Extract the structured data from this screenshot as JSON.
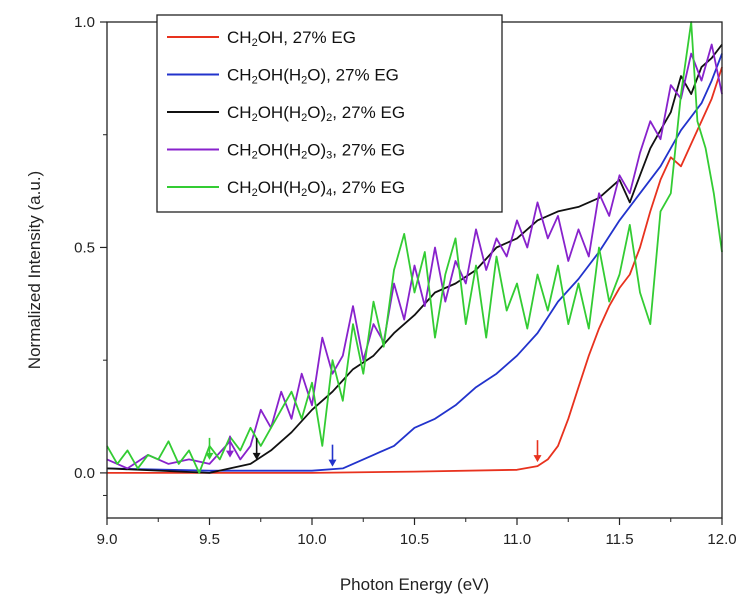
{
  "chart_data": {
    "type": "line",
    "xlabel": "Photon Energy (eV)",
    "ylabel": "Normalized Intensity (a.u.)",
    "xlim": [
      9.0,
      12.0
    ],
    "ylim": [
      -0.1,
      1.0
    ],
    "x_ticks": [
      "9.0",
      "9.5",
      "10.0",
      "10.5",
      "11.0",
      "11.5",
      "12.0"
    ],
    "y_ticks": [
      "0.0",
      "0.5",
      "1.0"
    ],
    "legend_position": "top-left",
    "grid": false,
    "series": [
      {
        "name": "CH2OH, 27% EG",
        "legend": {
          "pre": "CH",
          "sub": "2",
          "post": "OH, 27% EG"
        },
        "color": "#e8321e",
        "points": [
          [
            9.0,
            0.0
          ],
          [
            10.0,
            0.0
          ],
          [
            10.5,
            0.003
          ],
          [
            11.0,
            0.007
          ],
          [
            11.1,
            0.015
          ],
          [
            11.15,
            0.03
          ],
          [
            11.2,
            0.06
          ],
          [
            11.25,
            0.12
          ],
          [
            11.3,
            0.19
          ],
          [
            11.35,
            0.26
          ],
          [
            11.4,
            0.32
          ],
          [
            11.45,
            0.37
          ],
          [
            11.5,
            0.41
          ],
          [
            11.55,
            0.44
          ],
          [
            11.6,
            0.5
          ],
          [
            11.65,
            0.58
          ],
          [
            11.7,
            0.65
          ],
          [
            11.75,
            0.7
          ],
          [
            11.8,
            0.68
          ],
          [
            11.85,
            0.73
          ],
          [
            11.9,
            0.78
          ],
          [
            11.95,
            0.83
          ],
          [
            12.0,
            0.9
          ]
        ]
      },
      {
        "name": "CH2OH(H2O), 27% EG",
        "legend": {
          "pre": "CH",
          "sub": "2",
          "mid": "OH(H",
          "sub2": "2",
          "post": "O), 27% EG"
        },
        "color": "#2233cc",
        "points": [
          [
            9.0,
            0.01
          ],
          [
            9.5,
            0.005
          ],
          [
            10.0,
            0.005
          ],
          [
            10.15,
            0.01
          ],
          [
            10.3,
            0.04
          ],
          [
            10.4,
            0.06
          ],
          [
            10.5,
            0.1
          ],
          [
            10.6,
            0.12
          ],
          [
            10.7,
            0.15
          ],
          [
            10.8,
            0.19
          ],
          [
            10.9,
            0.22
          ],
          [
            11.0,
            0.26
          ],
          [
            11.1,
            0.31
          ],
          [
            11.2,
            0.38
          ],
          [
            11.3,
            0.43
          ],
          [
            11.4,
            0.49
          ],
          [
            11.5,
            0.56
          ],
          [
            11.6,
            0.62
          ],
          [
            11.7,
            0.68
          ],
          [
            11.8,
            0.76
          ],
          [
            11.9,
            0.82
          ],
          [
            11.95,
            0.87
          ],
          [
            12.0,
            0.93
          ]
        ]
      },
      {
        "name": "CH2OH(H2O)2, 27% EG",
        "legend": {
          "pre": "CH",
          "sub": "2",
          "mid": "OH(H",
          "sub2": "2",
          "post": "O)",
          "sub3": "2",
          "tail": ", 27% EG"
        },
        "color": "#111111",
        "points": [
          [
            9.0,
            0.01
          ],
          [
            9.5,
            0.0
          ],
          [
            9.7,
            0.02
          ],
          [
            9.8,
            0.05
          ],
          [
            9.9,
            0.09
          ],
          [
            10.0,
            0.14
          ],
          [
            10.1,
            0.18
          ],
          [
            10.2,
            0.23
          ],
          [
            10.3,
            0.26
          ],
          [
            10.4,
            0.31
          ],
          [
            10.5,
            0.35
          ],
          [
            10.6,
            0.4
          ],
          [
            10.7,
            0.42
          ],
          [
            10.8,
            0.45
          ],
          [
            10.9,
            0.5
          ],
          [
            11.0,
            0.52
          ],
          [
            11.1,
            0.56
          ],
          [
            11.2,
            0.58
          ],
          [
            11.3,
            0.59
          ],
          [
            11.4,
            0.61
          ],
          [
            11.5,
            0.65
          ],
          [
            11.55,
            0.6
          ],
          [
            11.6,
            0.66
          ],
          [
            11.65,
            0.72
          ],
          [
            11.7,
            0.76
          ],
          [
            11.75,
            0.8
          ],
          [
            11.8,
            0.88
          ],
          [
            11.85,
            0.84
          ],
          [
            11.9,
            0.9
          ],
          [
            11.95,
            0.92
          ],
          [
            12.0,
            0.95
          ]
        ]
      },
      {
        "name": "CH2OH(H2O)3, 27% EG",
        "legend": {
          "pre": "CH",
          "sub": "2",
          "mid": "OH(H",
          "sub2": "2",
          "post": "O)",
          "sub3": "3",
          "tail": ", 27% EG"
        },
        "color": "#8822cc",
        "points": [
          [
            9.0,
            0.03
          ],
          [
            9.1,
            0.01
          ],
          [
            9.2,
            0.04
          ],
          [
            9.3,
            0.02
          ],
          [
            9.4,
            0.03
          ],
          [
            9.5,
            0.02
          ],
          [
            9.6,
            0.07
          ],
          [
            9.65,
            0.03
          ],
          [
            9.7,
            0.06
          ],
          [
            9.75,
            0.14
          ],
          [
            9.8,
            0.1
          ],
          [
            9.85,
            0.18
          ],
          [
            9.9,
            0.12
          ],
          [
            9.95,
            0.22
          ],
          [
            10.0,
            0.15
          ],
          [
            10.05,
            0.3
          ],
          [
            10.1,
            0.22
          ],
          [
            10.15,
            0.26
          ],
          [
            10.2,
            0.37
          ],
          [
            10.25,
            0.25
          ],
          [
            10.3,
            0.33
          ],
          [
            10.35,
            0.29
          ],
          [
            10.4,
            0.42
          ],
          [
            10.45,
            0.34
          ],
          [
            10.5,
            0.46
          ],
          [
            10.55,
            0.37
          ],
          [
            10.6,
            0.5
          ],
          [
            10.65,
            0.38
          ],
          [
            10.7,
            0.47
          ],
          [
            10.75,
            0.42
          ],
          [
            10.8,
            0.54
          ],
          [
            10.85,
            0.45
          ],
          [
            10.9,
            0.52
          ],
          [
            10.95,
            0.48
          ],
          [
            11.0,
            0.56
          ],
          [
            11.05,
            0.5
          ],
          [
            11.1,
            0.6
          ],
          [
            11.15,
            0.52
          ],
          [
            11.2,
            0.57
          ],
          [
            11.25,
            0.47
          ],
          [
            11.3,
            0.54
          ],
          [
            11.35,
            0.48
          ],
          [
            11.4,
            0.62
          ],
          [
            11.45,
            0.57
          ],
          [
            11.5,
            0.66
          ],
          [
            11.55,
            0.62
          ],
          [
            11.6,
            0.71
          ],
          [
            11.65,
            0.78
          ],
          [
            11.7,
            0.74
          ],
          [
            11.75,
            0.86
          ],
          [
            11.8,
            0.83
          ],
          [
            11.85,
            0.93
          ],
          [
            11.9,
            0.87
          ],
          [
            11.95,
            0.95
          ],
          [
            12.0,
            0.84
          ]
        ]
      },
      {
        "name": "CH2OH(H2O)4, 27% EG",
        "legend": {
          "pre": "CH",
          "sub": "2",
          "mid": "OH(H",
          "sub2": "2",
          "post": "O)",
          "sub3": "4",
          "tail": ", 27% EG"
        },
        "color": "#33cc33",
        "points": [
          [
            9.0,
            0.06
          ],
          [
            9.05,
            0.02
          ],
          [
            9.1,
            0.05
          ],
          [
            9.15,
            0.01
          ],
          [
            9.2,
            0.04
          ],
          [
            9.25,
            0.03
          ],
          [
            9.3,
            0.07
          ],
          [
            9.35,
            0.02
          ],
          [
            9.4,
            0.05
          ],
          [
            9.45,
            0.0
          ],
          [
            9.5,
            0.06
          ],
          [
            9.55,
            0.03
          ],
          [
            9.6,
            0.08
          ],
          [
            9.65,
            0.05
          ],
          [
            9.7,
            0.1
          ],
          [
            9.75,
            0.06
          ],
          [
            9.8,
            0.1
          ],
          [
            9.85,
            0.14
          ],
          [
            9.9,
            0.18
          ],
          [
            9.95,
            0.12
          ],
          [
            10.0,
            0.2
          ],
          [
            10.05,
            0.06
          ],
          [
            10.1,
            0.25
          ],
          [
            10.15,
            0.16
          ],
          [
            10.2,
            0.33
          ],
          [
            10.25,
            0.22
          ],
          [
            10.3,
            0.38
          ],
          [
            10.35,
            0.28
          ],
          [
            10.4,
            0.45
          ],
          [
            10.45,
            0.53
          ],
          [
            10.5,
            0.4
          ],
          [
            10.55,
            0.49
          ],
          [
            10.6,
            0.3
          ],
          [
            10.65,
            0.44
          ],
          [
            10.7,
            0.52
          ],
          [
            10.75,
            0.33
          ],
          [
            10.8,
            0.46
          ],
          [
            10.85,
            0.3
          ],
          [
            10.9,
            0.48
          ],
          [
            10.95,
            0.36
          ],
          [
            11.0,
            0.42
          ],
          [
            11.05,
            0.32
          ],
          [
            11.1,
            0.44
          ],
          [
            11.15,
            0.36
          ],
          [
            11.2,
            0.46
          ],
          [
            11.25,
            0.33
          ],
          [
            11.3,
            0.42
          ],
          [
            11.35,
            0.32
          ],
          [
            11.4,
            0.5
          ],
          [
            11.45,
            0.38
          ],
          [
            11.5,
            0.44
          ],
          [
            11.55,
            0.55
          ],
          [
            11.6,
            0.4
          ],
          [
            11.65,
            0.33
          ],
          [
            11.7,
            0.58
          ],
          [
            11.75,
            0.62
          ],
          [
            11.8,
            0.84
          ],
          [
            11.85,
            1.0
          ],
          [
            11.88,
            0.78
          ],
          [
            11.92,
            0.72
          ],
          [
            11.96,
            0.62
          ],
          [
            12.0,
            0.49
          ]
        ]
      }
    ],
    "markers": [
      {
        "x": 9.6,
        "y": 0.025,
        "color": "#8822cc"
      },
      {
        "x": 10.1,
        "y": 0.005,
        "color": "#2233cc"
      },
      {
        "x": 11.1,
        "y": 0.015,
        "color": "#e8321e"
      },
      {
        "x": 9.73,
        "y": 0.02,
        "color": "#111111"
      },
      {
        "x": 9.5,
        "y": 0.02,
        "color": "#33cc33"
      }
    ]
  }
}
